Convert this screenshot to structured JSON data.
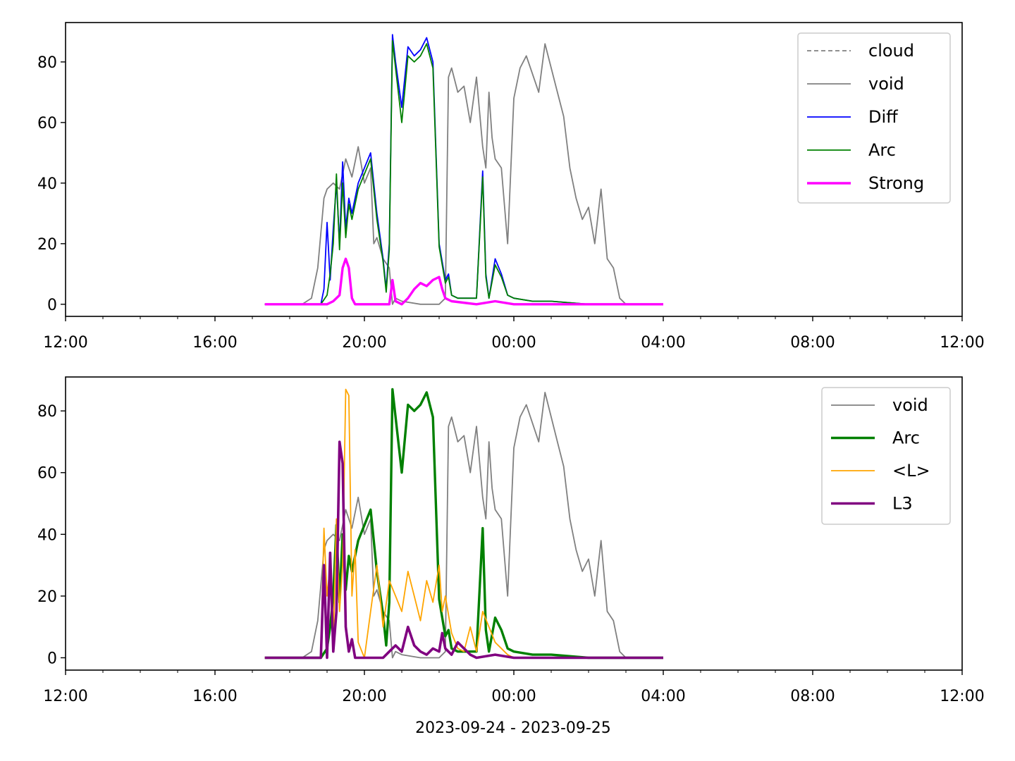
{
  "figure": {
    "xlabel": "2023-09-24 - 2023-09-25"
  },
  "chart_data": [
    {
      "type": "line",
      "x_unit": "time (2023-09-24 to 2023-09-25)",
      "xlim": [
        "12:00",
        "12:00 (+1 day)"
      ],
      "ylim": [
        -4,
        93
      ],
      "x_ticks": [
        "12:00",
        "16:00",
        "20:00",
        "00:00",
        "04:00",
        "08:00",
        "12:00"
      ],
      "y_ticks": [
        0,
        20,
        40,
        60,
        80
      ],
      "grid": false,
      "legend_position": "top-right",
      "legend": [
        "cloud",
        "void",
        "Diff",
        "Arc",
        "Strong"
      ],
      "series": [
        {
          "name": "cloud",
          "color": "#808080",
          "style": "dashed",
          "x": [],
          "y": []
        },
        {
          "name": "void",
          "color": "#808080",
          "style": "solid",
          "x": [
            "17:20",
            "18:20",
            "18:35",
            "18:45",
            "18:55",
            "19:00",
            "19:10",
            "19:20",
            "19:30",
            "19:40",
            "19:50",
            "20:00",
            "20:10",
            "20:15",
            "20:20",
            "20:30",
            "20:40",
            "20:45",
            "20:50",
            "21:00",
            "21:30",
            "22:00",
            "22:10",
            "22:15",
            "22:20",
            "22:30",
            "22:40",
            "22:50",
            "23:00",
            "23:10",
            "23:15",
            "23:20",
            "23:25",
            "23:30",
            "23:40",
            "23:50",
            "00:00",
            "00:10",
            "00:20",
            "00:30",
            "00:40",
            "00:50",
            "01:00",
            "01:10",
            "01:20",
            "01:30",
            "01:40",
            "01:50",
            "02:00",
            "02:10",
            "02:20",
            "02:30",
            "02:40",
            "02:50",
            "03:00",
            "04:00"
          ],
          "y": [
            0,
            0,
            2,
            12,
            35,
            38,
            40,
            38,
            48,
            42,
            52,
            40,
            45,
            20,
            22,
            15,
            12,
            0,
            2,
            1,
            0,
            0,
            2,
            75,
            78,
            70,
            72,
            60,
            75,
            52,
            45,
            70,
            55,
            48,
            45,
            20,
            68,
            78,
            82,
            76,
            70,
            86,
            78,
            70,
            62,
            45,
            35,
            28,
            32,
            20,
            38,
            15,
            12,
            2,
            0,
            0
          ]
        },
        {
          "name": "Diff",
          "color": "#0000ff",
          "style": "solid",
          "x": [
            "17:20",
            "18:50",
            "18:55",
            "19:00",
            "19:05",
            "19:10",
            "19:15",
            "19:20",
            "19:25",
            "19:30",
            "19:35",
            "19:40",
            "19:50",
            "20:00",
            "20:10",
            "20:20",
            "20:30",
            "20:35",
            "20:40",
            "20:45",
            "20:50",
            "21:00",
            "21:10",
            "21:20",
            "21:30",
            "21:40",
            "21:50",
            "22:00",
            "22:10",
            "22:15",
            "22:20",
            "22:30",
            "22:40",
            "23:00",
            "23:10",
            "23:15",
            "23:20",
            "23:30",
            "23:40",
            "23:50",
            "00:00",
            "00:30",
            "01:00",
            "02:00",
            "04:00"
          ],
          "y": [
            0,
            0,
            5,
            27,
            8,
            25,
            40,
            20,
            47,
            25,
            35,
            30,
            40,
            45,
            50,
            30,
            15,
            5,
            20,
            89,
            80,
            65,
            85,
            82,
            84,
            88,
            80,
            20,
            8,
            10,
            3,
            2,
            2,
            2,
            44,
            10,
            2,
            15,
            10,
            3,
            2,
            1,
            1,
            0,
            0
          ]
        },
        {
          "name": "Arc",
          "color": "#008000",
          "style": "solid",
          "x": [
            "17:20",
            "18:50",
            "19:00",
            "19:05",
            "19:10",
            "19:15",
            "19:20",
            "19:25",
            "19:30",
            "19:35",
            "19:40",
            "19:50",
            "20:00",
            "20:10",
            "20:20",
            "20:30",
            "20:35",
            "20:40",
            "20:45",
            "20:50",
            "21:00",
            "21:10",
            "21:20",
            "21:30",
            "21:40",
            "21:50",
            "22:00",
            "22:10",
            "22:15",
            "22:20",
            "22:30",
            "22:40",
            "23:00",
            "23:10",
            "23:15",
            "23:20",
            "23:30",
            "23:40",
            "23:50",
            "00:00",
            "00:30",
            "01:00",
            "02:00",
            "04:00"
          ],
          "y": [
            0,
            0,
            3,
            10,
            20,
            43,
            18,
            40,
            22,
            33,
            28,
            38,
            43,
            48,
            28,
            14,
            4,
            18,
            87,
            78,
            60,
            82,
            80,
            82,
            86,
            78,
            19,
            7,
            9,
            3,
            2,
            2,
            2,
            42,
            9,
            2,
            13,
            9,
            3,
            2,
            1,
            1,
            0,
            0
          ]
        },
        {
          "name": "Strong",
          "color": "#ff00ff",
          "style": "solid",
          "x": [
            "17:20",
            "19:00",
            "19:10",
            "19:20",
            "19:25",
            "19:30",
            "19:35",
            "19:40",
            "19:45",
            "19:50",
            "20:00",
            "20:30",
            "20:40",
            "20:45",
            "20:50",
            "21:00",
            "21:10",
            "21:20",
            "21:30",
            "21:40",
            "21:50",
            "22:00",
            "22:05",
            "22:10",
            "22:20",
            "23:00",
            "23:30",
            "00:00",
            "04:00"
          ],
          "y": [
            0,
            0,
            1,
            3,
            12,
            15,
            12,
            2,
            0,
            0,
            0,
            0,
            0,
            8,
            1,
            0,
            2,
            5,
            7,
            6,
            8,
            9,
            5,
            2,
            1,
            0,
            1,
            0,
            0
          ]
        }
      ]
    },
    {
      "type": "line",
      "x_unit": "time (2023-09-24 to 2023-09-25)",
      "xlim": [
        "12:00",
        "12:00 (+1 day)"
      ],
      "ylim": [
        -4,
        91
      ],
      "x_ticks": [
        "12:00",
        "16:00",
        "20:00",
        "00:00",
        "04:00",
        "08:00",
        "12:00"
      ],
      "y_ticks": [
        0,
        20,
        40,
        60,
        80
      ],
      "grid": false,
      "legend_position": "top-right",
      "legend": [
        "void",
        "Arc",
        "<L>",
        "L3"
      ],
      "series": [
        {
          "name": "void",
          "color": "#808080",
          "style": "solid",
          "x": [
            "17:20",
            "18:20",
            "18:35",
            "18:45",
            "18:55",
            "19:00",
            "19:10",
            "19:20",
            "19:30",
            "19:40",
            "19:50",
            "20:00",
            "20:10",
            "20:15",
            "20:20",
            "20:30",
            "20:40",
            "20:45",
            "20:50",
            "21:00",
            "21:30",
            "22:00",
            "22:10",
            "22:15",
            "22:20",
            "22:30",
            "22:40",
            "22:50",
            "23:00",
            "23:10",
            "23:15",
            "23:20",
            "23:25",
            "23:30",
            "23:40",
            "23:50",
            "00:00",
            "00:10",
            "00:20",
            "00:30",
            "00:40",
            "00:50",
            "01:00",
            "01:10",
            "01:20",
            "01:30",
            "01:40",
            "01:50",
            "02:00",
            "02:10",
            "02:20",
            "02:30",
            "02:40",
            "02:50",
            "03:00",
            "04:00"
          ],
          "y": [
            0,
            0,
            2,
            12,
            35,
            38,
            40,
            38,
            48,
            42,
            52,
            40,
            45,
            20,
            22,
            15,
            12,
            0,
            2,
            1,
            0,
            0,
            2,
            75,
            78,
            70,
            72,
            60,
            75,
            52,
            45,
            70,
            55,
            48,
            45,
            20,
            68,
            78,
            82,
            76,
            70,
            86,
            78,
            70,
            62,
            45,
            35,
            28,
            32,
            20,
            38,
            15,
            12,
            2,
            0,
            0
          ]
        },
        {
          "name": "Arc",
          "color": "#008000",
          "style": "solid",
          "x": [
            "17:20",
            "18:50",
            "19:00",
            "19:05",
            "19:10",
            "19:15",
            "19:20",
            "19:25",
            "19:30",
            "19:35",
            "19:40",
            "19:50",
            "20:00",
            "20:10",
            "20:20",
            "20:30",
            "20:35",
            "20:40",
            "20:45",
            "20:50",
            "21:00",
            "21:10",
            "21:20",
            "21:30",
            "21:40",
            "21:50",
            "22:00",
            "22:10",
            "22:15",
            "22:20",
            "22:30",
            "22:40",
            "23:00",
            "23:10",
            "23:15",
            "23:20",
            "23:30",
            "23:40",
            "23:50",
            "00:00",
            "00:30",
            "01:00",
            "02:00",
            "04:00"
          ],
          "y": [
            0,
            0,
            3,
            10,
            20,
            43,
            18,
            40,
            22,
            33,
            28,
            38,
            43,
            48,
            28,
            14,
            4,
            18,
            87,
            78,
            60,
            82,
            80,
            82,
            86,
            78,
            19,
            7,
            9,
            3,
            2,
            2,
            2,
            42,
            9,
            2,
            13,
            9,
            3,
            2,
            1,
            1,
            0,
            0
          ]
        },
        {
          "name": "<L>",
          "color": "#ffa500",
          "style": "solid",
          "x": [
            "17:20",
            "18:50",
            "18:55",
            "19:00",
            "19:05",
            "19:10",
            "19:15",
            "19:20",
            "19:25",
            "19:30",
            "19:35",
            "19:40",
            "19:45",
            "19:50",
            "20:00",
            "20:10",
            "20:20",
            "20:30",
            "20:40",
            "20:50",
            "21:00",
            "21:10",
            "21:20",
            "21:30",
            "21:40",
            "21:50",
            "22:00",
            "22:05",
            "22:10",
            "22:20",
            "22:30",
            "22:40",
            "22:50",
            "23:00",
            "23:10",
            "23:20",
            "23:30",
            "23:40",
            "23:50",
            "00:00",
            "04:00"
          ],
          "y": [
            0,
            0,
            42,
            20,
            30,
            5,
            45,
            15,
            30,
            87,
            85,
            20,
            35,
            5,
            0,
            15,
            30,
            10,
            25,
            20,
            15,
            28,
            20,
            12,
            25,
            18,
            30,
            15,
            20,
            8,
            3,
            2,
            10,
            2,
            15,
            10,
            5,
            3,
            1,
            0,
            0
          ]
        },
        {
          "name": "L3",
          "color": "#800080",
          "style": "solid",
          "x": [
            "17:20",
            "18:50",
            "18:55",
            "19:00",
            "19:05",
            "19:10",
            "19:15",
            "19:20",
            "19:25",
            "19:30",
            "19:35",
            "19:40",
            "19:45",
            "19:50",
            "20:00",
            "20:30",
            "20:40",
            "20:50",
            "21:00",
            "21:10",
            "21:20",
            "21:30",
            "21:40",
            "21:50",
            "22:00",
            "22:05",
            "22:10",
            "22:20",
            "22:30",
            "22:40",
            "22:50",
            "23:00",
            "23:30",
            "00:00",
            "04:00"
          ],
          "y": [
            0,
            0,
            30,
            0,
            34,
            2,
            15,
            70,
            63,
            10,
            2,
            6,
            0,
            0,
            0,
            0,
            2,
            4,
            2,
            10,
            4,
            2,
            1,
            3,
            2,
            8,
            3,
            1,
            5,
            3,
            1,
            0,
            1,
            0,
            0
          ]
        }
      ]
    }
  ]
}
